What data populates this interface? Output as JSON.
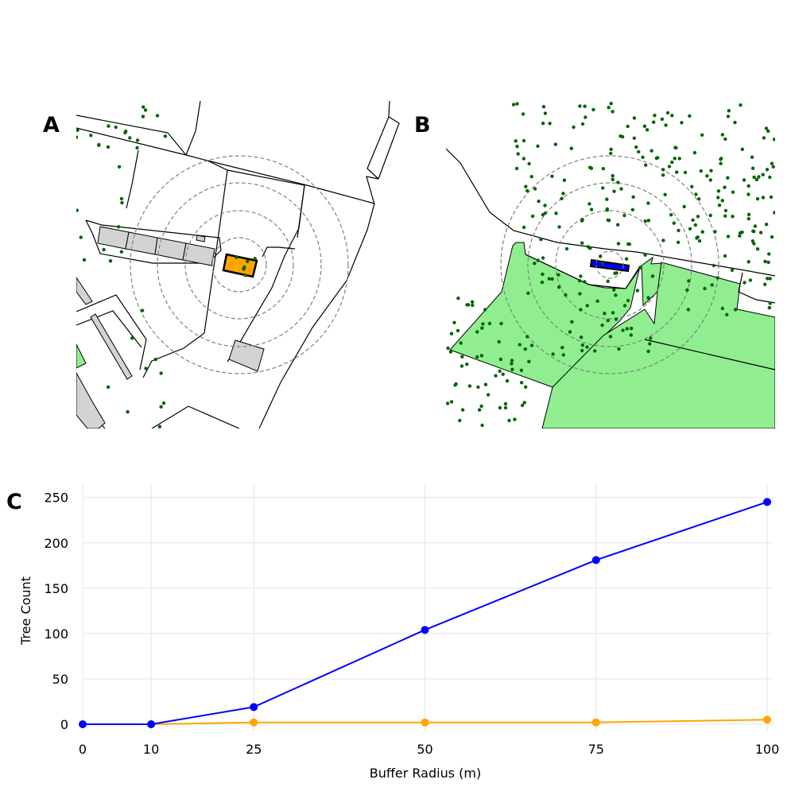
{
  "panels": {
    "a": {
      "label": "A",
      "focus_color": "#ffa500",
      "green_color": "#90ee90",
      "tree_color": "#006400",
      "building_color": "#d3d3d3"
    },
    "b": {
      "label": "B",
      "focus_color": "#0000ff",
      "green_color": "#90ee90",
      "tree_color": "#006400"
    },
    "c": {
      "label": "C"
    }
  },
  "chart_data": {
    "type": "line",
    "title": "",
    "xlabel": "Buffer Radius (m)",
    "ylabel": "Tree Count",
    "x": [
      0,
      10,
      25,
      50,
      75,
      100
    ],
    "xticks": [
      0,
      10,
      25,
      50,
      75,
      100
    ],
    "yticks": [
      0,
      50,
      100,
      150,
      200,
      250
    ],
    "xlim": [
      0,
      100
    ],
    "ylim": [
      0,
      255
    ],
    "grid": true,
    "series": [
      {
        "color": "#0000ff",
        "x": [
          0,
          10,
          25,
          50,
          75,
          100
        ],
        "values": [
          0,
          0,
          19,
          104,
          181,
          245
        ]
      },
      {
        "color": "#ffa500",
        "x": [
          10,
          25,
          50,
          75,
          100
        ],
        "values": [
          0,
          2,
          2,
          2,
          5
        ]
      }
    ]
  }
}
